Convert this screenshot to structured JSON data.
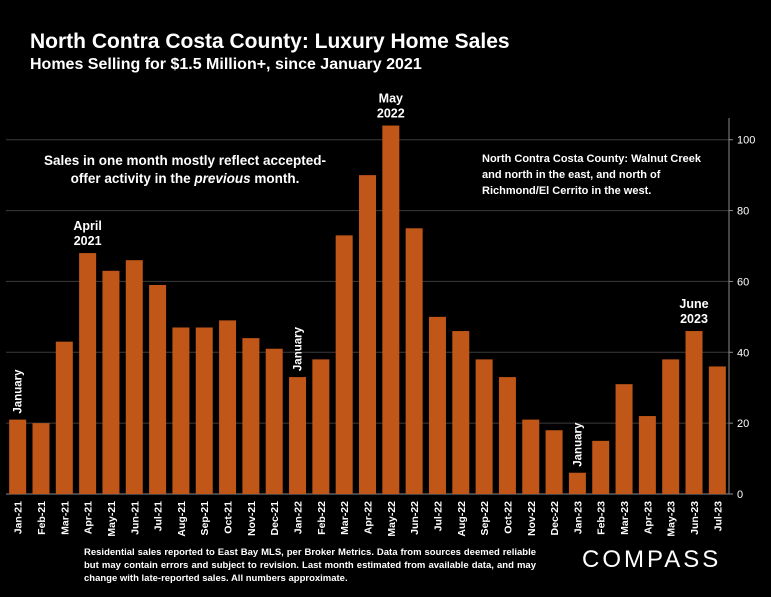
{
  "title": "North Contra Costa County: Luxury Home Sales",
  "subtitle": "Homes Selling for $1.5 Million+, since January 2021",
  "note_left_prefix": "Sales in one month mostly reflect accepted-offer activity in the",
  "note_left_emphasis": "previous",
  "note_left_suffix": "month.",
  "note_right": "North Contra Costa County: Walnut Creek and north in the east, and north of Richmond/El Cerrito in the west.",
  "footnote": "Residential sales reported to East Bay MLS, per Broker Metrics. Data from sources deemed reliable but may contain errors and subject to revision. Last month estimated from available data, and may change with late-reported sales. All numbers approximate.",
  "logo": "COMPASS",
  "colors": {
    "bar": "#C05617",
    "grid": "#3c3c3c",
    "axis": "#8a8a8a"
  },
  "chart_data": {
    "type": "bar",
    "categories": [
      "Jan-21",
      "Feb-21",
      "Mar-21",
      "Apr-21",
      "May-21",
      "Jun-21",
      "Jul-21",
      "Aug-21",
      "Sep-21",
      "Oct-21",
      "Nov-21",
      "Dec-21",
      "Jan-22",
      "Feb-22",
      "Mar-22",
      "Apr-22",
      "May-22",
      "Jun-22",
      "Jul-22",
      "Aug-22",
      "Sep-22",
      "Oct-22",
      "Nov-22",
      "Dec-22",
      "Jan-23",
      "Feb-23",
      "Mar-23",
      "Apr-23",
      "May-23",
      "Jun-23",
      "Jul-23"
    ],
    "values": [
      21,
      20,
      43,
      68,
      63,
      66,
      59,
      47,
      47,
      49,
      44,
      41,
      33,
      38,
      73,
      90,
      104,
      75,
      50,
      46,
      38,
      33,
      21,
      18,
      6,
      15,
      31,
      22,
      38,
      46,
      36
    ],
    "ylim": [
      0,
      105
    ],
    "yticks": [
      0,
      20,
      40,
      60,
      80,
      100
    ],
    "grid": true,
    "annotations": [
      {
        "index": 0,
        "lines": [
          "January"
        ],
        "rotated": true
      },
      {
        "index": 3,
        "lines": [
          "April",
          "2021"
        ],
        "rotated": false
      },
      {
        "index": 12,
        "lines": [
          "January"
        ],
        "rotated": true
      },
      {
        "index": 16,
        "lines": [
          "May",
          "2022"
        ],
        "rotated": false
      },
      {
        "index": 24,
        "lines": [
          "January"
        ],
        "rotated": true
      },
      {
        "index": 29,
        "lines": [
          "June",
          "2023"
        ],
        "rotated": false
      }
    ]
  }
}
